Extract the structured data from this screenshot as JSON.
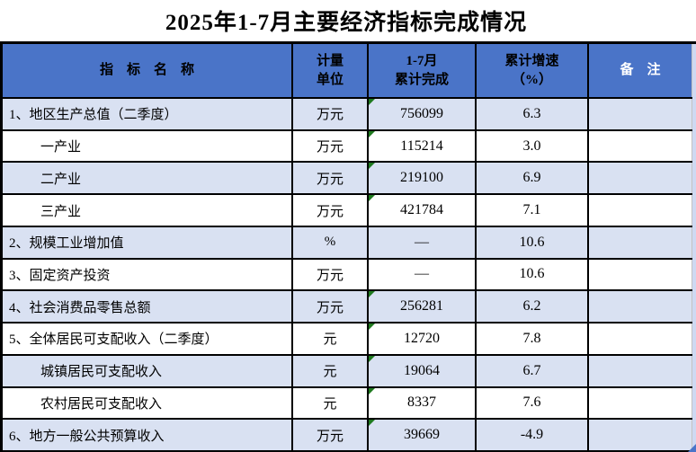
{
  "title": "2025年1-7月主要经济指标完成情况",
  "colors": {
    "header_bg": "#4A74C8",
    "band_row_bg": "#D9E1F2",
    "plain_row_bg": "#FFFFFF",
    "border": "#000000",
    "header_note_text": "#FFFFFF",
    "formula_flag_green": "#1F7A1F",
    "corner_handle_blue": "#4A74C8",
    "right_strip": "#CED9F2"
  },
  "table": {
    "headers": {
      "name": "指　标　名　称",
      "unit_line1": "计量",
      "unit_line2": "单位",
      "value_line1": "1-7月",
      "value_line2": "累计完成",
      "growth_line1": "累计增速",
      "growth_line2": "（%）",
      "note": "备　注"
    },
    "rows": [
      {
        "name": "1、地区生产总值（二季度）",
        "unit": "万元",
        "value": "756099",
        "growth": "6.3",
        "note": "",
        "indent": false,
        "flag": true
      },
      {
        "name": "一产业",
        "unit": "万元",
        "value": "115214",
        "growth": "3.0",
        "note": "",
        "indent": true,
        "flag": true
      },
      {
        "name": "二产业",
        "unit": "万元",
        "value": "219100",
        "growth": "6.9",
        "note": "",
        "indent": true,
        "flag": true
      },
      {
        "name": "三产业",
        "unit": "万元",
        "value": "421784",
        "growth": "7.1",
        "note": "",
        "indent": true,
        "flag": true
      },
      {
        "name": "2、规模工业增加值",
        "unit": "%",
        "value": "—",
        "growth": "10.6",
        "note": "",
        "indent": false,
        "flag": false
      },
      {
        "name": "3、固定资产投资",
        "unit": "万元",
        "value": "—",
        "growth": "10.6",
        "note": "",
        "indent": false,
        "flag": false
      },
      {
        "name": "4、社会消费品零售总额",
        "unit": "万元",
        "value": "256281",
        "growth": "6.2",
        "note": "",
        "indent": false,
        "flag": true
      },
      {
        "name": "5、全体居民可支配收入（二季度）",
        "unit": "元",
        "value": "12720",
        "growth": "7.8",
        "note": "",
        "indent": false,
        "flag": true
      },
      {
        "name": "城镇居民可支配收入",
        "unit": "元",
        "value": "19064",
        "growth": "6.7",
        "note": "",
        "indent": true,
        "flag": true
      },
      {
        "name": "农村居民可支配收入",
        "unit": "元",
        "value": "8337",
        "growth": "7.6",
        "note": "",
        "indent": true,
        "flag": true
      },
      {
        "name": "6、地方一般公共预算收入",
        "unit": "万元",
        "value": "39669",
        "growth": "-4.9",
        "note": "",
        "indent": false,
        "flag": true
      }
    ]
  }
}
